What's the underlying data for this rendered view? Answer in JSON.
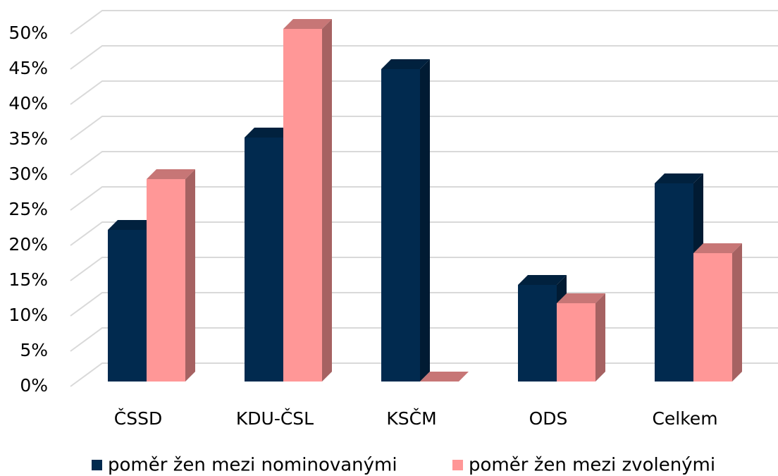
{
  "chart_data": {
    "type": "bar3d",
    "categories": [
      "ČSSD",
      "KDU-ČSL",
      "KSČM",
      "ODS",
      "Celkem"
    ],
    "series": [
      {
        "name": "poměr žen mezi nominovanými",
        "color": "#012a4f",
        "values": [
          21.5,
          34.6,
          44.3,
          13.7,
          28.1
        ]
      },
      {
        "name": "poměr žen mezi zvolenými",
        "color": "#ff9797",
        "values": [
          28.7,
          50,
          0,
          11.1,
          18.2
        ]
      }
    ],
    "ylim": [
      0,
      50
    ],
    "yticks": [
      {
        "value": 0,
        "label": "0%"
      },
      {
        "value": 5,
        "label": "5%"
      },
      {
        "value": 10,
        "label": "10%"
      },
      {
        "value": 15,
        "label": "15%"
      },
      {
        "value": 20,
        "label": "20%"
      },
      {
        "value": 25,
        "label": "25%"
      },
      {
        "value": 30,
        "label": "30%"
      },
      {
        "value": 35,
        "label": "35%"
      },
      {
        "value": 40,
        "label": "40%"
      },
      {
        "value": 45,
        "label": "45%"
      },
      {
        "value": 50,
        "label": "50%"
      }
    ],
    "grid": true,
    "legend": "bottom"
  }
}
